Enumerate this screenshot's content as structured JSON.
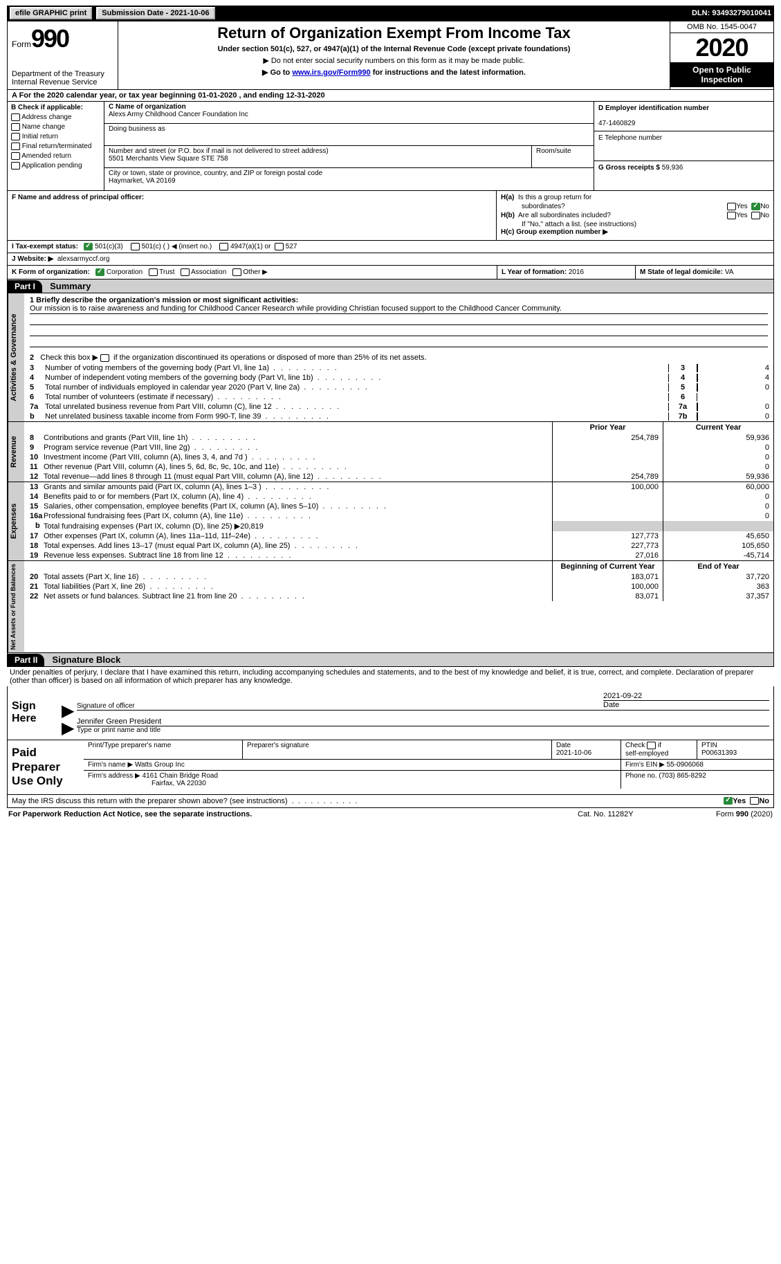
{
  "topbar": {
    "efile": "efile GRAPHIC print",
    "submission": "Submission Date - 2021-10-06",
    "dln": "DLN: 93493279010041"
  },
  "header": {
    "form_word": "Form",
    "form_no": "990",
    "dept": "Department of the Treasury\nInternal Revenue Service",
    "title": "Return of Organization Exempt From Income Tax",
    "sub1": "Under section 501(c), 527, or 4947(a)(1) of the Internal Revenue Code (except private foundations)",
    "sub2": "▶ Do not enter social security numbers on this form as it may be made public.",
    "sub3_pre": "▶ Go to ",
    "sub3_link": "www.irs.gov/Form990",
    "sub3_post": " for instructions and the latest information.",
    "omb": "OMB No. 1545-0047",
    "year": "2020",
    "inspect": "Open to Public Inspection"
  },
  "row_a": "A For the 2020 calendar year, or tax year beginning 01-01-2020    , and ending 12-31-2020",
  "col_b": {
    "label": "B Check if applicable:",
    "opts": [
      "Address change",
      "Name change",
      "Initial return",
      "Final return/terminated",
      "Amended return",
      "Application pending"
    ]
  },
  "col_c": {
    "name_lbl": "C Name of organization",
    "name": "Alexs Army Childhood Cancer Foundation Inc",
    "dba_lbl": "Doing business as",
    "addr_lbl": "Number and street (or P.O. box if mail is not delivered to street address)",
    "room_lbl": "Room/suite",
    "addr": "5501 Merchants View Square STE 758",
    "city_lbl": "City or town, state or province, country, and ZIP or foreign postal code",
    "city": "Haymarket, VA  20169"
  },
  "col_d": {
    "ein_lbl": "D Employer identification number",
    "ein": "47-1460829",
    "tel_lbl": "E Telephone number",
    "gross_lbl": "G Gross receipts $ ",
    "gross": "59,936"
  },
  "col_f": "F  Name and address of principal officer:",
  "col_h": {
    "ha": "H(a)  Is this a group return for subordinates?",
    "hb": "H(b)  Are all subordinates included?",
    "hb_note": "If \"No,\" attach a list. (see instructions)",
    "hc": "H(c)  Group exemption number ▶",
    "yes": "Yes",
    "no": "No"
  },
  "row_i": {
    "lbl": "I   Tax-exempt status:",
    "o1": "501(c)(3)",
    "o2": "501(c) (  ) ◀ (insert no.)",
    "o3": "4947(a)(1) or",
    "o4": "527"
  },
  "row_j": {
    "lbl": "J   Website: ▶",
    "val": "alexsarmyccf.org"
  },
  "row_k": {
    "lbl": "K Form of organization:",
    "o1": "Corporation",
    "o2": "Trust",
    "o3": "Association",
    "o4": "Other ▶",
    "l_lbl": "L Year of formation: ",
    "l_val": "2016",
    "m_lbl": "M State of legal domicile: ",
    "m_val": "VA"
  },
  "part1": {
    "hdr": "Part I",
    "title": "Summary"
  },
  "q1": {
    "lbl": "1  Briefly describe the organization's mission or most significant activities:",
    "mission": "Our mission is to raise awareness and funding for Childhood Cancer Research while providing Christian focused support to the Childhood Cancer Community."
  },
  "q2": "2   Check this box ▶        if the organization discontinued its operations or disposed of more than 25% of its net assets.",
  "gov_lines": [
    {
      "n": "3",
      "t": "Number of voting members of the governing body (Part VI, line 1a)",
      "box": "3",
      "v": "4"
    },
    {
      "n": "4",
      "t": "Number of independent voting members of the governing body (Part VI, line 1b)",
      "box": "4",
      "v": "4"
    },
    {
      "n": "5",
      "t": "Total number of individuals employed in calendar year 2020 (Part V, line 2a)",
      "box": "5",
      "v": "0"
    },
    {
      "n": "6",
      "t": "Total number of volunteers (estimate if necessary)",
      "box": "6",
      "v": ""
    },
    {
      "n": "7a",
      "t": "Total unrelated business revenue from Part VIII, column (C), line 12",
      "box": "7a",
      "v": "0"
    },
    {
      "n": "b",
      "t": "Net unrelated business taxable income from Form 990-T, line 39",
      "box": "7b",
      "v": "0"
    }
  ],
  "col_hdrs": {
    "py": "Prior Year",
    "cy": "Current Year"
  },
  "rev_lines": [
    {
      "n": "8",
      "t": "Contributions and grants (Part VIII, line 1h)",
      "py": "254,789",
      "cy": "59,936"
    },
    {
      "n": "9",
      "t": "Program service revenue (Part VIII, line 2g)",
      "py": "",
      "cy": "0"
    },
    {
      "n": "10",
      "t": "Investment income (Part VIII, column (A), lines 3, 4, and 7d )",
      "py": "",
      "cy": "0"
    },
    {
      "n": "11",
      "t": "Other revenue (Part VIII, column (A), lines 5, 6d, 8c, 9c, 10c, and 11e)",
      "py": "",
      "cy": "0"
    },
    {
      "n": "12",
      "t": "Total revenue—add lines 8 through 11 (must equal Part VIII, column (A), line 12)",
      "py": "254,789",
      "cy": "59,936"
    }
  ],
  "exp_lines": [
    {
      "n": "13",
      "t": "Grants and similar amounts paid (Part IX, column (A), lines 1–3 )",
      "py": "100,000",
      "cy": "60,000"
    },
    {
      "n": "14",
      "t": "Benefits paid to or for members (Part IX, column (A), line 4)",
      "py": "",
      "cy": "0"
    },
    {
      "n": "15",
      "t": "Salaries, other compensation, employee benefits (Part IX, column (A), lines 5–10)",
      "py": "",
      "cy": "0"
    },
    {
      "n": "16a",
      "t": "Professional fundraising fees (Part IX, column (A), line 11e)",
      "py": "",
      "cy": "0"
    },
    {
      "n": "b",
      "t": "Total fundraising expenses (Part IX, column (D), line 25) ▶20,819",
      "py": "shade",
      "cy": "shade"
    },
    {
      "n": "17",
      "t": "Other expenses (Part IX, column (A), lines 11a–11d, 11f–24e)",
      "py": "127,773",
      "cy": "45,650"
    },
    {
      "n": "18",
      "t": "Total expenses. Add lines 13–17 (must equal Part IX, column (A), line 25)",
      "py": "227,773",
      "cy": "105,650"
    },
    {
      "n": "19",
      "t": "Revenue less expenses. Subtract line 18 from line 12",
      "py": "27,016",
      "cy": "-45,714"
    }
  ],
  "na_hdrs": {
    "py": "Beginning of Current Year",
    "cy": "End of Year"
  },
  "na_lines": [
    {
      "n": "20",
      "t": "Total assets (Part X, line 16)",
      "py": "183,071",
      "cy": "37,720"
    },
    {
      "n": "21",
      "t": "Total liabilities (Part X, line 26)",
      "py": "100,000",
      "cy": "363"
    },
    {
      "n": "22",
      "t": "Net assets or fund balances. Subtract line 21 from line 20",
      "py": "83,071",
      "cy": "37,357"
    }
  ],
  "vtabs": {
    "gov": "Activities & Governance",
    "rev": "Revenue",
    "exp": "Expenses",
    "na": "Net Assets or Fund Balances"
  },
  "part2": {
    "hdr": "Part II",
    "title": "Signature Block"
  },
  "sig_para": "Under penalties of perjury, I declare that I have examined this return, including accompanying schedules and statements, and to the best of my knowledge and belief, it is true, correct, and complete. Declaration of preparer (other than officer) is based on all information of which preparer has any knowledge.",
  "sign": {
    "here": "Sign Here",
    "date": "2021-09-22",
    "sig_lbl": "Signature of officer",
    "date_lbl": "Date",
    "name": "Jennifer Green President",
    "name_lbl": "Type or print name and title"
  },
  "prep": {
    "title": "Paid Preparer Use Only",
    "h1": "Print/Type preparer's name",
    "h2": "Preparer's signature",
    "h3": "Date",
    "h3v": "2021-10-06",
    "h4": "Check         if self-employed",
    "h5": "PTIN",
    "h5v": "P00631393",
    "firm_lbl": "Firm's name    ▶",
    "firm": "Watts Group Inc",
    "ein_lbl": "Firm's EIN ▶",
    "ein": "55-0906068",
    "addr_lbl": "Firm's address ▶",
    "addr1": "4161 Chain Bridge Road",
    "addr2": "Fairfax, VA  22030",
    "phone_lbl": "Phone no. ",
    "phone": "(703) 865-8292"
  },
  "may": "May the IRS discuss this return with the preparer shown above? (see instructions)",
  "foot": {
    "l": "For Paperwork Reduction Act Notice, see the separate instructions.",
    "c": "Cat. No. 11282Y",
    "r": "Form 990 (2020)"
  }
}
